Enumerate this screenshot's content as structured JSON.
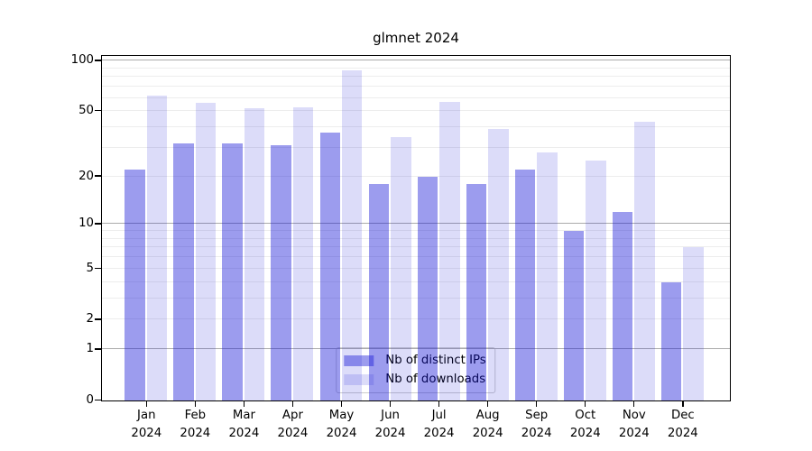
{
  "title": "glmnet 2024",
  "chart_data": {
    "type": "bar",
    "title": "glmnet 2024",
    "y_scale": "log1p",
    "grid": true,
    "categories": [
      "Jan",
      "Feb",
      "Mar",
      "Apr",
      "May",
      "Jun",
      "Jul",
      "Aug",
      "Sep",
      "Oct",
      "Nov",
      "Dec"
    ],
    "x_year_line": "2024",
    "series": [
      {
        "name": "Nb of distinct IPs",
        "color": "rgba(20,20,215,0.42)",
        "values": [
          22,
          32,
          32,
          31,
          37,
          18,
          20,
          18,
          22,
          9,
          12,
          4
        ]
      },
      {
        "name": "Nb of downloads",
        "color": "rgba(20,20,215,0.15)",
        "values": [
          62,
          56,
          52,
          53,
          88,
          35,
          57,
          39,
          28,
          25,
          43,
          7
        ]
      }
    ],
    "y_ticks": [
      0,
      1,
      2,
      5,
      10,
      20,
      50,
      100
    ],
    "major_gridlines": [
      1,
      10,
      100
    ],
    "minor_gridlines": [
      2,
      3,
      4,
      5,
      6,
      7,
      8,
      9,
      20,
      30,
      40,
      50,
      60,
      70,
      80,
      90
    ],
    "ylim": [
      0,
      105
    ],
    "legend_position": "lower center"
  },
  "colors": {
    "axis": "#000000",
    "text": "#000000",
    "major_grid": "#ababab",
    "minor_grid": "#ededed",
    "legend_border": "#cccccc",
    "legend_bg": "rgba(255,255,255,0.8)"
  }
}
